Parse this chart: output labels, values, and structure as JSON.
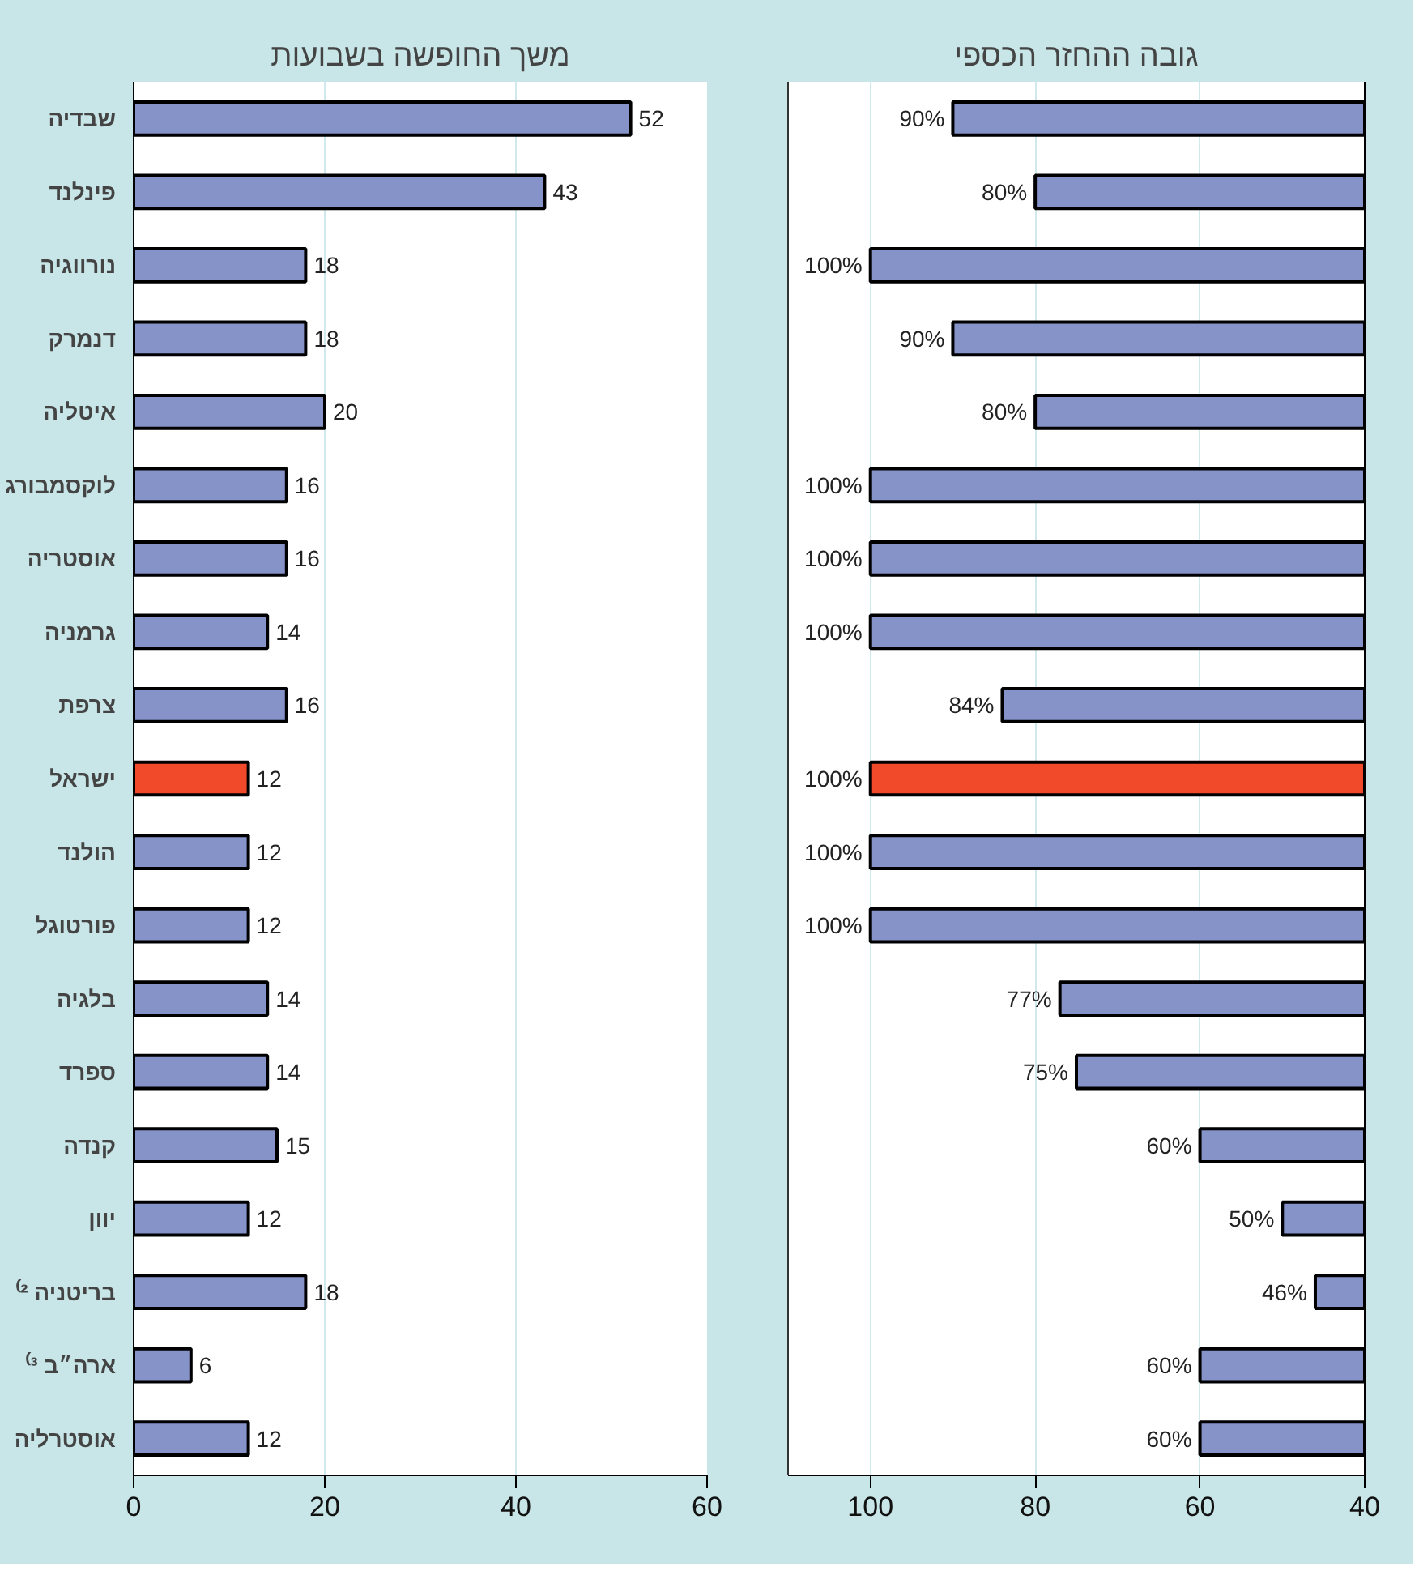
{
  "chart_data": [
    {
      "type": "bar",
      "orientation": "horizontal",
      "title": "משך החופשה בשבועות",
      "categories": [
        "שבדיה",
        "פינלנד",
        "נורווגיה",
        "דנמרק",
        "איטליה",
        "לוקסמבורג",
        "אוסטריה",
        "גרמניה",
        "צרפת",
        "ישראל",
        "הולנד",
        "פורטוגל",
        "בלגיה",
        "ספרד",
        "קנדה",
        "יוון",
        "בריטניה ²⁾",
        "ארה״ב ³⁾",
        "אוסטרליה"
      ],
      "values": [
        52,
        43,
        18,
        18,
        20,
        16,
        16,
        14,
        16,
        12,
        12,
        12,
        14,
        14,
        15,
        12,
        18,
        6,
        12
      ],
      "colors": [
        "#8593c9",
        "#8593c9",
        "#8593c9",
        "#8593c9",
        "#8593c9",
        "#8593c9",
        "#8593c9",
        "#8593c9",
        "#8593c9",
        "#f04a2a",
        "#8593c9",
        "#8593c9",
        "#8593c9",
        "#8593c9",
        "#8593c9",
        "#8593c9",
        "#8593c9",
        "#8593c9",
        "#8593c9"
      ],
      "data_labels": true,
      "xlim": [
        0,
        60
      ],
      "xticks": [
        0,
        20,
        40,
        60
      ],
      "grid": "x"
    },
    {
      "type": "bar",
      "orientation": "horizontal",
      "title": "גובה ההחזר הכספי",
      "categories": [
        null,
        null,
        null,
        null,
        null,
        null,
        null,
        null,
        null,
        null,
        null,
        null,
        null,
        null,
        null,
        null,
        null,
        null,
        null
      ],
      "values": [
        90,
        80,
        100,
        90,
        80,
        100,
        100,
        100,
        84,
        100,
        100,
        100,
        77,
        75,
        60,
        50,
        46,
        60,
        60
      ],
      "value_labels": [
        "90%",
        "80%",
        "100%",
        "90%",
        "80%",
        "100%",
        "100%",
        "100%",
        "84%",
        "100%",
        "100%",
        "100%",
        "77%",
        "75%",
        "60%",
        "50%",
        "46%",
        "60%",
        "60%"
      ],
      "colors": [
        "#8593c9",
        "#8593c9",
        "#8593c9",
        "#8593c9",
        "#8593c9",
        "#8593c9",
        "#8593c9",
        "#8593c9",
        "#8593c9",
        "#f04a2a",
        "#8593c9",
        "#8593c9",
        "#8593c9",
        "#8593c9",
        "#8593c9",
        "#8593c9",
        "#8593c9",
        "#8593c9",
        "#8593c9"
      ],
      "xlim": [
        110,
        40
      ],
      "xticks": [
        100,
        80,
        60,
        40
      ],
      "grid": "x"
    }
  ]
}
